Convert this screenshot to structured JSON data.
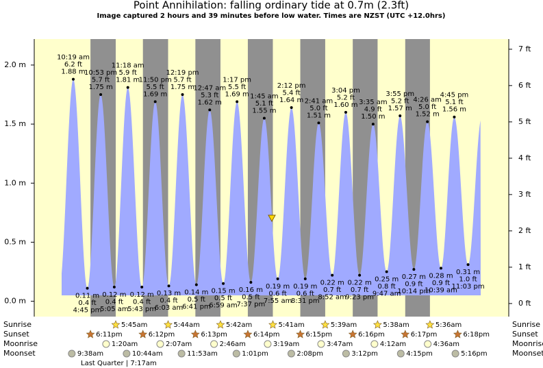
{
  "chart_data": {
    "type": "area",
    "title": "Point Annihilation: falling  ordinary tide at 0.7m (2.3ft)",
    "subtitle": "Image captured 2 hours and 39 minutes before low water. Times are NZST (UTC +12.0hrs)",
    "x": [
      "10:19 am",
      "4:45 pm",
      "10:53 pm",
      "5:05 am",
      "11:18 am",
      "5:43 pm",
      "11:50 pm",
      "6:03 am",
      "12:19 pm",
      "6:41 pm",
      "12:47 am",
      "6:59 am",
      "1:17 pm",
      "7:37 pm",
      "1:45 am",
      "7:55 am",
      "2:12 pm",
      "8:31 pm",
      "2:41 am",
      "8:52 am",
      "3:04 pm",
      "9:23 pm",
      "3:35 am",
      "9:47 am",
      "3:55 pm",
      "10:14 pm",
      "4:26 am",
      "10:39 am",
      "4:45 pm",
      "11:03 pm"
    ],
    "series": [
      {
        "color": "#a0aaff",
        "values": [
          1.88,
          0.11,
          1.75,
          0.12,
          1.81,
          0.12,
          1.69,
          0.13,
          1.75,
          0.14,
          1.62,
          0.15,
          1.69,
          0.16,
          1.55,
          0.19,
          1.64,
          0.19,
          1.51,
          0.22,
          1.6,
          0.22,
          1.5,
          0.25,
          1.57,
          0.27,
          1.52,
          0.28,
          1.56,
          0.31
        ],
        "value_labels": [
          "1.88 m",
          "0.11 m",
          "1.75 m",
          "0.12 m",
          "1.81 m",
          "0.12 m",
          "1.69 m",
          "0.13 m",
          "1.75 m",
          "0.14 m",
          "1.62 m",
          "0.15 m",
          "1.69 m",
          "0.16 m",
          "1.55 m",
          "0.19 m",
          "1.64 m",
          "0.19 m",
          "1.51 m",
          "0.22 m",
          "1.60 m",
          "0.22 m",
          "1.50 m",
          "0.25 m",
          "1.57 m",
          "0.27 m",
          "1.52 m",
          "0.28 m",
          "1.56 m",
          "0.31 m"
        ]
      },
      {
        "axis": "y2",
        "values": [
          6.2,
          0.4,
          5.7,
          0.4,
          5.9,
          0.4,
          5.5,
          0.4,
          5.7,
          0.5,
          5.3,
          0.5,
          5.5,
          0.5,
          5.1,
          0.6,
          5.4,
          0.6,
          5.0,
          0.7,
          5.2,
          0.7,
          4.9,
          0.8,
          5.2,
          0.9,
          5.0,
          0.9,
          5.1,
          1.0
        ],
        "value_labels": [
          "6.2 ft",
          "0.4 ft",
          "5.7 ft",
          "0.4 ft",
          "5.9 ft",
          "0.4 ft",
          "5.5 ft",
          "0.4 ft",
          "5.7 ft",
          "0.5 ft",
          "5.3 ft",
          "0.5 ft",
          "5.5 ft",
          "0.5 ft",
          "5.1 ft",
          "0.6 ft",
          "5.4 ft",
          "0.6 ft",
          "5.0 ft",
          "0.7 ft",
          "5.2 ft",
          "0.7 ft",
          "4.9 ft",
          "0.8 ft",
          "5.2 ft",
          "0.9 ft",
          "5.0 ft",
          "0.9 ft",
          "5.1 ft",
          "1.0 ft"
        ]
      }
    ],
    "current_level": 0.7,
    "ylim": [
      -0.13,
      2.22
    ],
    "yticks": [
      {
        "value": 0,
        "label": "0.0 m"
      },
      {
        "value": 0.5,
        "label": "0.5 m"
      },
      {
        "value": 1,
        "label": "1.0 m"
      },
      {
        "value": 1.5,
        "label": "1.5 m"
      },
      {
        "value": 2,
        "label": "2.0 m"
      }
    ],
    "y2lim": [
      -0.36,
      7.28
    ],
    "y2ticks": [
      {
        "value": 0,
        "label": "0 ft"
      },
      {
        "value": 1,
        "label": "1 ft"
      },
      {
        "value": 2,
        "label": "2 ft"
      },
      {
        "value": 3,
        "label": "3 ft"
      },
      {
        "value": 4,
        "label": "4 ft"
      },
      {
        "value": 5,
        "label": "5 ft"
      },
      {
        "value": 6,
        "label": "6 ft"
      },
      {
        "value": 7,
        "label": "7 ft"
      }
    ],
    "day_color": "#ffffcc",
    "night_color": "#909090",
    "rows": {
      "sunrise": {
        "label": "Sunrise",
        "color": "#ffe040",
        "times": [
          "5:45am",
          "5:44am",
          "5:42am",
          "5:41am",
          "5:39am",
          "5:38am",
          "5:36am"
        ]
      },
      "sunset": {
        "label": "Sunset",
        "color": "#c87533",
        "times": [
          "6:11pm",
          "6:12pm",
          "6:13pm",
          "6:14pm",
          "6:15pm",
          "6:16pm",
          "6:17pm",
          "6:18pm"
        ]
      },
      "moonrise": {
        "label": "Moonrise",
        "color": "#ffffcc",
        "times": [
          "1:20am",
          "2:07am",
          "2:46am",
          "3:19am",
          "3:47am",
          "4:12am",
          "4:36am"
        ]
      },
      "moonset": {
        "label": "Moonset",
        "color": "#bcbca4",
        "times": [
          "9:38am",
          "10:44am",
          "11:53am",
          "1:01pm",
          "2:08pm",
          "3:12pm",
          "4:15pm",
          "5:16pm"
        ]
      }
    },
    "moon_phase": "Last Quarter | 7:17am"
  }
}
